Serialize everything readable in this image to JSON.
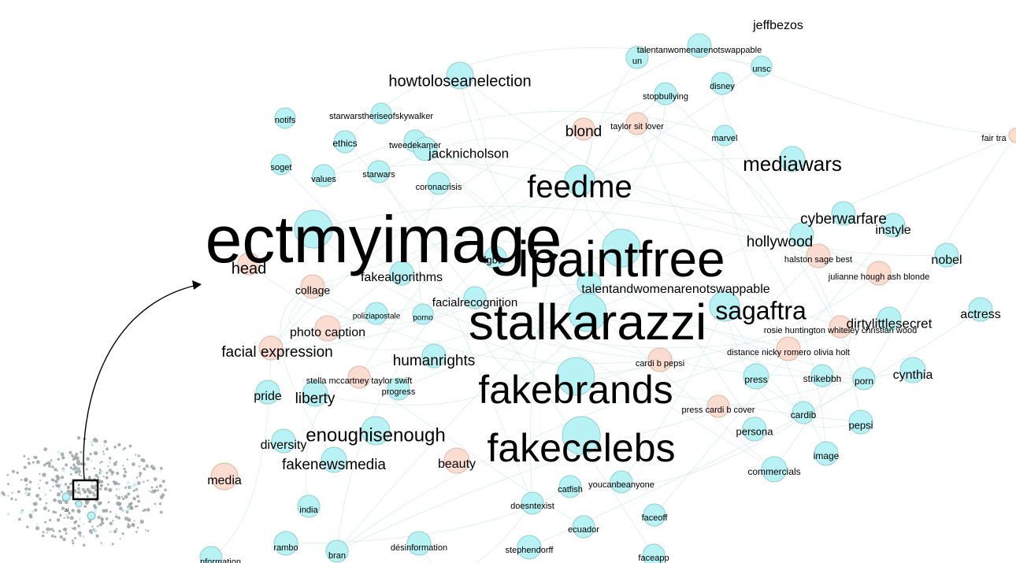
{
  "colors": {
    "hashtag_node": "#b8f2f4",
    "hashtag_stroke": "#8fd0d3",
    "keyword_node": "#fbdcd1",
    "keyword_stroke": "#e2b6a6",
    "edge": "#cfe6e6",
    "text": "#000000"
  },
  "overview": {
    "label": "ai"
  },
  "labels": [
    {
      "id": "n1",
      "text": "jeffbezos",
      "size": 16,
      "node": "hashtag"
    },
    {
      "id": "n2",
      "text": "talentanwomenarenotswappable",
      "size": 11,
      "node": "hashtag"
    },
    {
      "id": "n3",
      "text": "un",
      "size": 11,
      "node": "hashtag"
    },
    {
      "id": "n4",
      "text": "unsc",
      "size": 11,
      "node": "hashtag"
    },
    {
      "id": "n5",
      "text": "howtoloseanelection",
      "size": 20,
      "node": "hashtag"
    },
    {
      "id": "n6",
      "text": "disney",
      "size": 11,
      "node": "hashtag"
    },
    {
      "id": "n7",
      "text": "stopbullying",
      "size": 11,
      "node": "hashtag"
    },
    {
      "id": "n8",
      "text": "notifs",
      "size": 11,
      "node": "hashtag"
    },
    {
      "id": "n9",
      "text": "starwarstheriseofskywalker",
      "size": 11,
      "node": "hashtag"
    },
    {
      "id": "n10",
      "text": "blond",
      "size": 19,
      "node": "keyword"
    },
    {
      "id": "n11",
      "text": "taylor sit lover",
      "size": 11,
      "node": "keyword"
    },
    {
      "id": "n12",
      "text": "marvel",
      "size": 11,
      "node": "hashtag"
    },
    {
      "id": "n13",
      "text": "fair tra",
      "size": 11,
      "node": "keyword"
    },
    {
      "id": "n14",
      "text": "ethics",
      "size": 12,
      "node": "hashtag"
    },
    {
      "id": "n15",
      "text": "tweedekamer",
      "size": 11,
      "node": "hashtag"
    },
    {
      "id": "n16",
      "text": "jacknicholson",
      "size": 17,
      "node": "hashtag"
    },
    {
      "id": "n17",
      "text": "mediawars",
      "size": 26,
      "node": "hashtag"
    },
    {
      "id": "n18",
      "text": "soget",
      "size": 11,
      "node": "hashtag"
    },
    {
      "id": "n19",
      "text": "values",
      "size": 11,
      "node": "hashtag"
    },
    {
      "id": "n20",
      "text": "starwars",
      "size": 11,
      "node": "hashtag"
    },
    {
      "id": "n21",
      "text": "coronacrisis",
      "size": 11,
      "node": "hashtag"
    },
    {
      "id": "n22",
      "text": "feedme",
      "size": 40,
      "node": "hashtag"
    },
    {
      "id": "n23",
      "text": "ectmyimage",
      "size": 84,
      "node": "hashtag"
    },
    {
      "id": "n24",
      "text": "cyberwarfare",
      "size": 19,
      "node": "hashtag"
    },
    {
      "id": "n25",
      "text": "instyle",
      "size": 16,
      "node": "hashtag"
    },
    {
      "id": "n26",
      "text": "hollywood",
      "size": 19,
      "node": "hashtag"
    },
    {
      "id": "n27",
      "text": "ipaintfree",
      "size": 64,
      "node": "hashtag"
    },
    {
      "id": "n28",
      "text": "lgbt",
      "size": 13,
      "node": "hashtag"
    },
    {
      "id": "n29",
      "text": "halston sage best",
      "size": 11,
      "node": "keyword"
    },
    {
      "id": "n30",
      "text": "nobel",
      "size": 16,
      "node": "hashtag"
    },
    {
      "id": "n31",
      "text": "head",
      "size": 20,
      "node": "keyword"
    },
    {
      "id": "n32",
      "text": "fakealgorithms",
      "size": 16,
      "node": "hashtag"
    },
    {
      "id": "n33",
      "text": "julianne hough ash blonde",
      "size": 11,
      "node": "keyword"
    },
    {
      "id": "n34",
      "text": "collage",
      "size": 14,
      "node": "keyword"
    },
    {
      "id": "n35",
      "text": "talentandwomenarenotswappable",
      "size": 16,
      "node": "hashtag"
    },
    {
      "id": "n36",
      "text": "facialrecognition",
      "size": 15,
      "node": "hashtag"
    },
    {
      "id": "n37",
      "text": "sagaftra",
      "size": 32,
      "node": "hashtag"
    },
    {
      "id": "n38",
      "text": "actress",
      "size": 16,
      "node": "hashtag"
    },
    {
      "id": "n39",
      "text": "poliziapostale",
      "size": 10,
      "node": "hashtag"
    },
    {
      "id": "n40",
      "text": "porno",
      "size": 10,
      "node": "hashtag"
    },
    {
      "id": "n41",
      "text": "stalkarazzi",
      "size": 64,
      "node": "hashtag"
    },
    {
      "id": "n42",
      "text": "dirtylittlesecret",
      "size": 17,
      "node": "hashtag"
    },
    {
      "id": "n43",
      "text": "photo caption",
      "size": 16,
      "node": "keyword"
    },
    {
      "id": "n44",
      "text": "rosie huntington whiteley christian wood",
      "size": 11,
      "node": "keyword"
    },
    {
      "id": "n45",
      "text": "facial expression",
      "size": 19,
      "node": "keyword"
    },
    {
      "id": "n46",
      "text": "distance nicky romero olivia holt",
      "size": 11,
      "node": "keyword"
    },
    {
      "id": "n47",
      "text": "humanrights",
      "size": 19,
      "node": "hashtag"
    },
    {
      "id": "n48",
      "text": "cardi b pepsi",
      "size": 11,
      "node": "keyword"
    },
    {
      "id": "n49",
      "text": "fakebrands",
      "size": 50,
      "node": "hashtag"
    },
    {
      "id": "n50",
      "text": "cynthia",
      "size": 16,
      "node": "hashtag"
    },
    {
      "id": "n51",
      "text": "stella mccartney taylor swift",
      "size": 11,
      "node": "keyword"
    },
    {
      "id": "n52",
      "text": "press",
      "size": 12,
      "node": "hashtag"
    },
    {
      "id": "n53",
      "text": "strikebbh",
      "size": 12,
      "node": "hashtag"
    },
    {
      "id": "n54",
      "text": "porn",
      "size": 12,
      "node": "hashtag"
    },
    {
      "id": "n55",
      "text": "progress",
      "size": 11,
      "node": "hashtag"
    },
    {
      "id": "n56",
      "text": "pride",
      "size": 16,
      "node": "hashtag"
    },
    {
      "id": "n57",
      "text": "liberty",
      "size": 19,
      "node": "hashtag"
    },
    {
      "id": "n58",
      "text": "press cardi b cover",
      "size": 11,
      "node": "keyword"
    },
    {
      "id": "n59",
      "text": "cardib",
      "size": 12,
      "node": "hashtag"
    },
    {
      "id": "n60",
      "text": "pepsi",
      "size": 13,
      "node": "hashtag"
    },
    {
      "id": "n61",
      "text": "enoughisenough",
      "size": 24,
      "node": "hashtag"
    },
    {
      "id": "n62",
      "text": "fakecelebs",
      "size": 50,
      "node": "hashtag"
    },
    {
      "id": "n63",
      "text": "persona",
      "size": 13,
      "node": "hashtag"
    },
    {
      "id": "n64",
      "text": "diversity",
      "size": 16,
      "node": "hashtag"
    },
    {
      "id": "n65",
      "text": "image",
      "size": 12,
      "node": "hashtag"
    },
    {
      "id": "n66",
      "text": "fakenewsmedia",
      "size": 19,
      "node": "hashtag"
    },
    {
      "id": "n67",
      "text": "beauty",
      "size": 16,
      "node": "keyword"
    },
    {
      "id": "n68",
      "text": "commercials",
      "size": 12,
      "node": "hashtag"
    },
    {
      "id": "n69",
      "text": "media",
      "size": 16,
      "node": "keyword"
    },
    {
      "id": "n70",
      "text": "catfish",
      "size": 11,
      "node": "hashtag"
    },
    {
      "id": "n71",
      "text": "youcanbeanyone",
      "size": 11,
      "node": "hashtag"
    },
    {
      "id": "n72",
      "text": "doesntexist",
      "size": 11,
      "node": "hashtag"
    },
    {
      "id": "n73",
      "text": "india",
      "size": 11,
      "node": "hashtag"
    },
    {
      "id": "n74",
      "text": "faceoff",
      "size": 11,
      "node": "hashtag"
    },
    {
      "id": "n75",
      "text": "ecuador",
      "size": 11,
      "node": "hashtag"
    },
    {
      "id": "n76",
      "text": "rambo",
      "size": 11,
      "node": "hashtag"
    },
    {
      "id": "n77",
      "text": "désinformation",
      "size": 11,
      "node": "hashtag"
    },
    {
      "id": "n78",
      "text": "bran",
      "size": 11,
      "node": "hashtag"
    },
    {
      "id": "n79",
      "text": "stephendorff",
      "size": 11,
      "node": "hashtag"
    },
    {
      "id": "n80",
      "text": "faceapp",
      "size": 11,
      "node": "hashtag"
    },
    {
      "id": "n81",
      "text": "nformation",
      "size": 11,
      "node": "hashtag"
    }
  ]
}
